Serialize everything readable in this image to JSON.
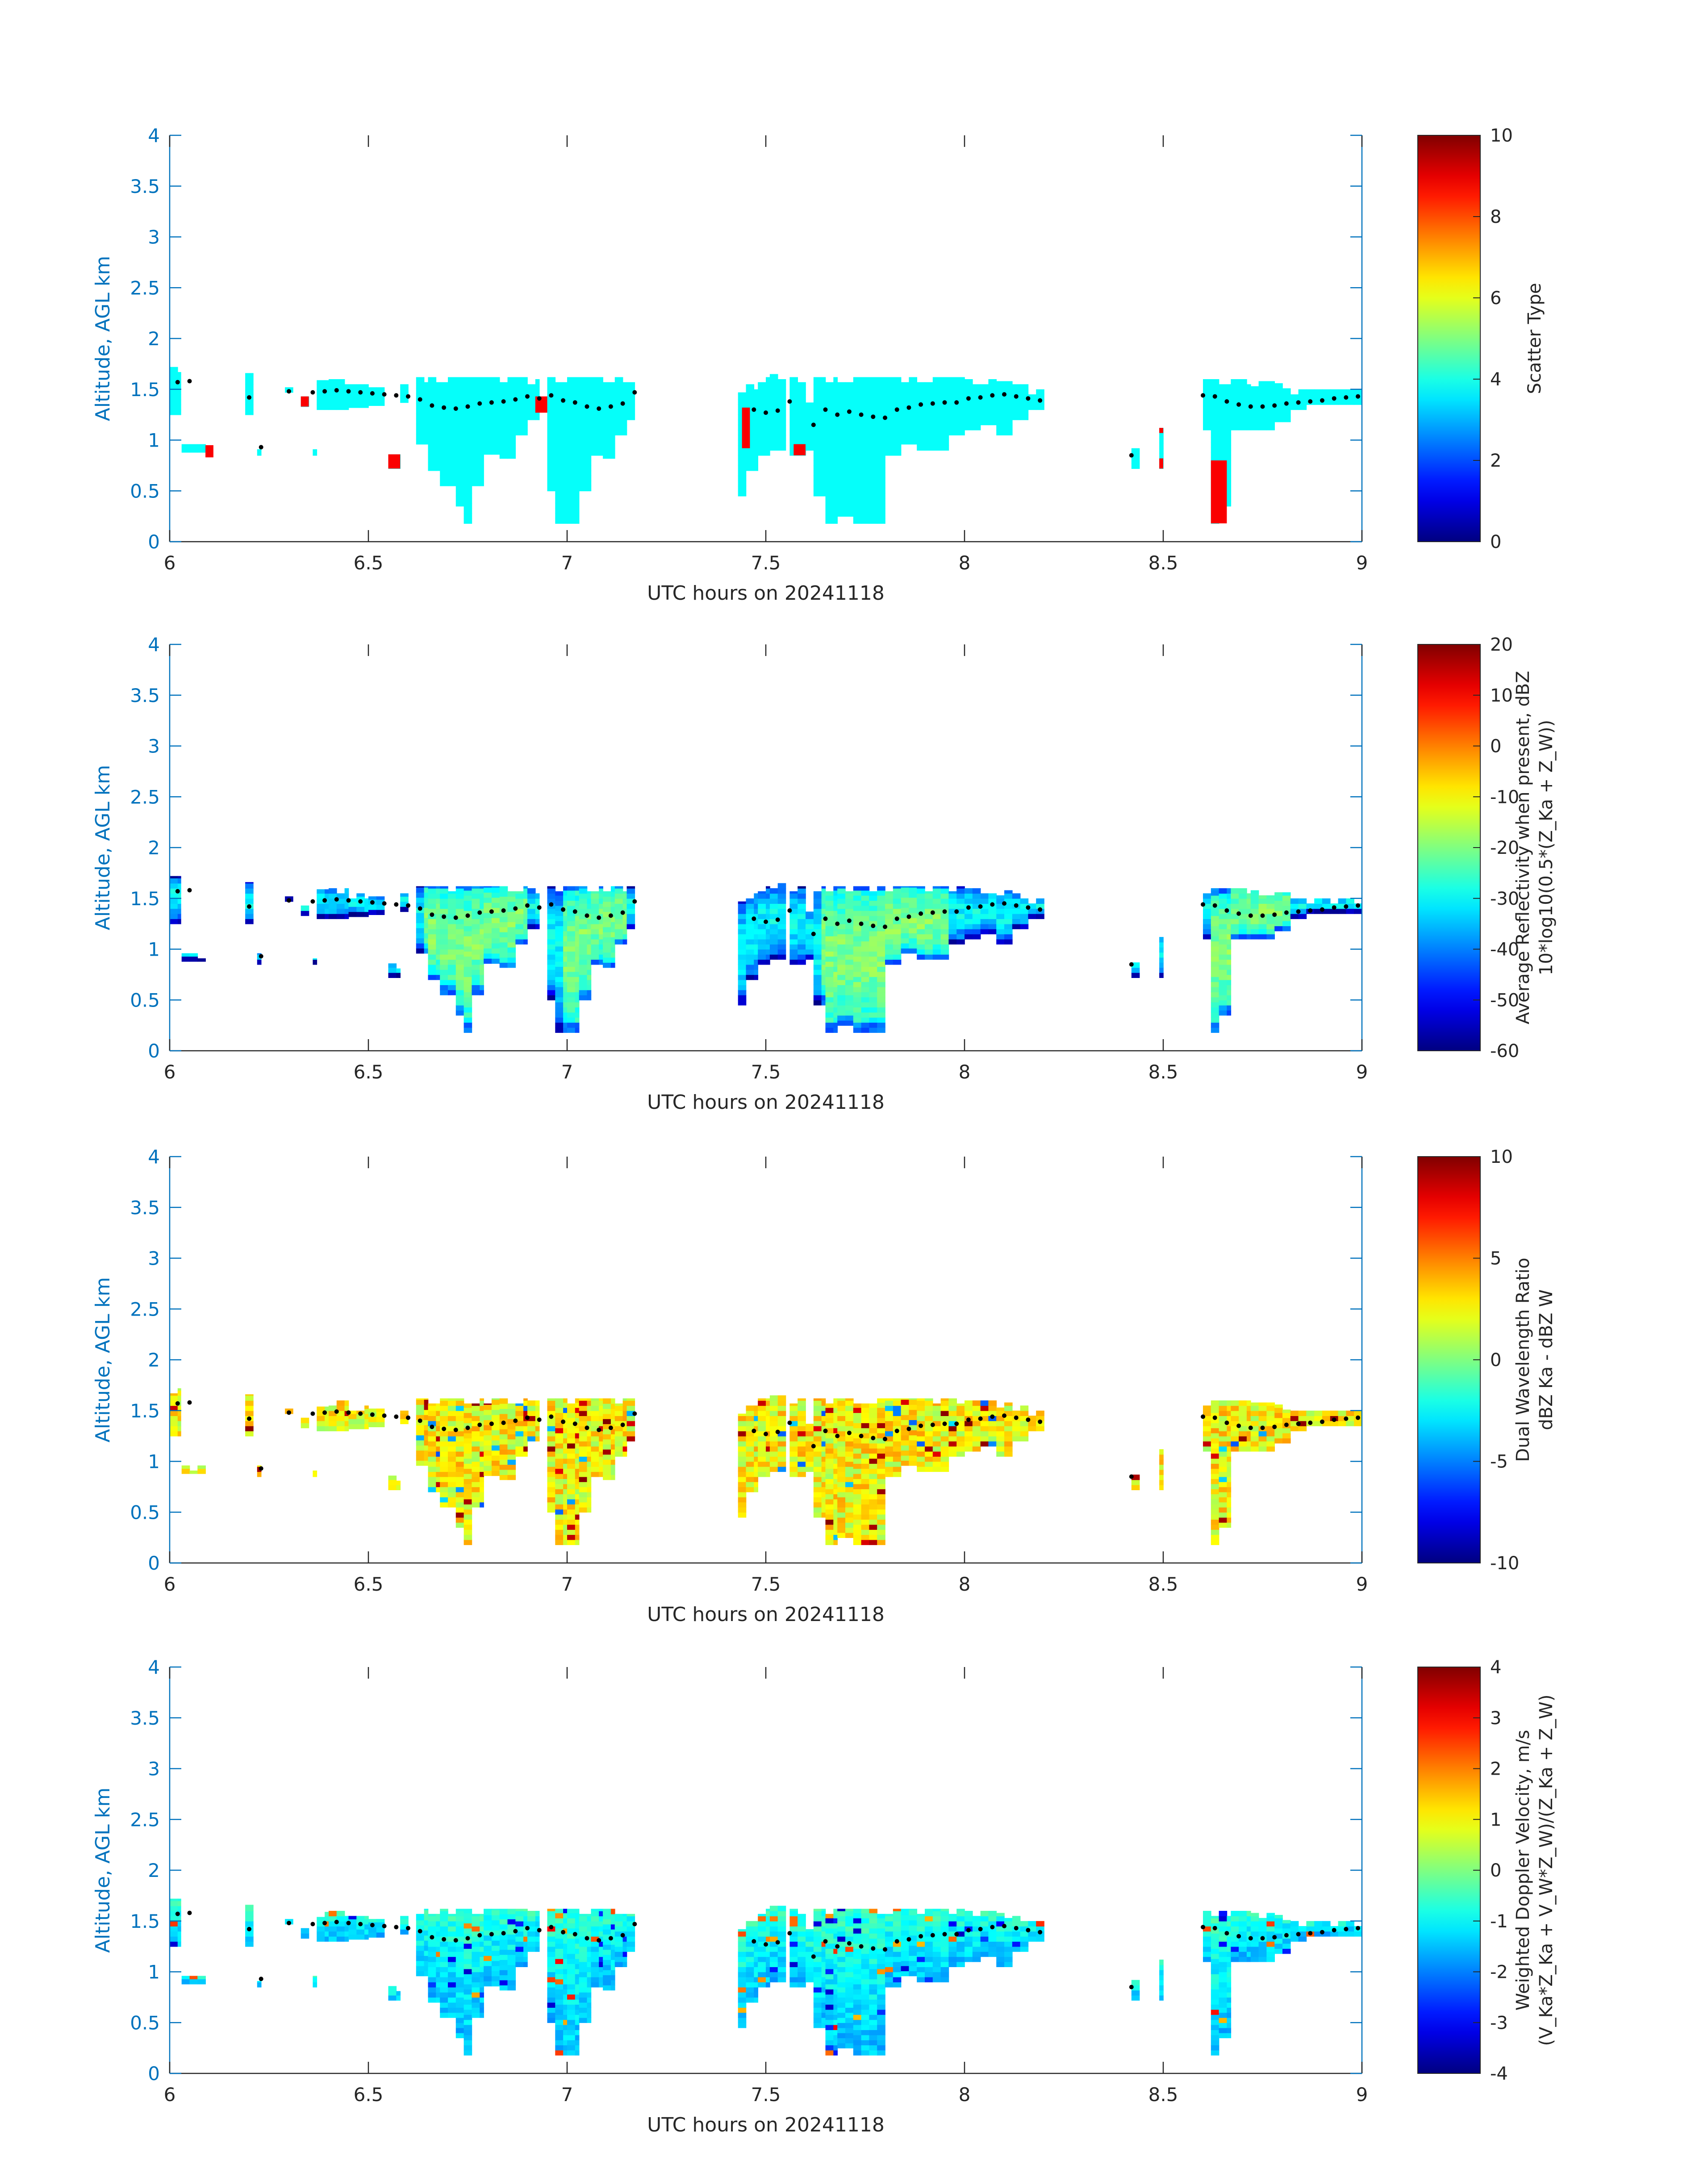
{
  "chart_data": [
    {
      "type": "heatmap",
      "xlabel": "UTC hours on 20241118",
      "ylabel": "Altitude, AGL km",
      "xlim": [
        6,
        9
      ],
      "ylim": [
        0,
        4
      ],
      "xticks": [
        "6",
        "6.5",
        "7",
        "7.5",
        "8",
        "8.5",
        "9"
      ],
      "yticks": [
        "0",
        "0.5",
        "1",
        "1.5",
        "2",
        "2.5",
        "3",
        "3.5",
        "4"
      ],
      "colorbar": {
        "label_lines": [
          "Scatter Type"
        ],
        "min": 0,
        "max": 10,
        "ticks": [
          "0",
          "2",
          "4",
          "6",
          "8",
          "10"
        ]
      },
      "field": "scatter_type",
      "dominant_value": 3.8,
      "secondary_value": 8.8
    },
    {
      "type": "heatmap",
      "xlabel": "UTC hours on 20241118",
      "ylabel": "Altitude, AGL km",
      "xlim": [
        6,
        9
      ],
      "ylim": [
        0,
        4
      ],
      "xticks": [
        "6",
        "6.5",
        "7",
        "7.5",
        "8",
        "8.5",
        "9"
      ],
      "yticks": [
        "0",
        "0.5",
        "1",
        "1.5",
        "2",
        "2.5",
        "3",
        "3.5",
        "4"
      ],
      "colorbar": {
        "label_lines": [
          "Average Reflectivity when present, dBZ",
          "10*log10(0.5*(Z_Ka + Z_W))"
        ],
        "min": -60,
        "max": 20,
        "ticks": [
          "-60",
          "-50",
          "-40",
          "-30",
          "-20",
          "-10",
          "0",
          "10",
          "20"
        ]
      },
      "field": "reflectivity",
      "typical_range": [
        -55,
        -18
      ]
    },
    {
      "type": "heatmap",
      "xlabel": "UTC hours on 20241118",
      "ylabel": "Altitude, AGL km",
      "xlim": [
        6,
        9
      ],
      "ylim": [
        0,
        4
      ],
      "xticks": [
        "6",
        "6.5",
        "7",
        "7.5",
        "8",
        "8.5",
        "9"
      ],
      "yticks": [
        "0",
        "0.5",
        "1",
        "1.5",
        "2",
        "2.5",
        "3",
        "3.5",
        "4"
      ],
      "colorbar": {
        "label_lines": [
          "Dual Wavelength Ratio",
          "dBZ Ka - dBZ W"
        ],
        "min": -10,
        "max": 10,
        "ticks": [
          "-10",
          "-5",
          "0",
          "5",
          "10"
        ]
      },
      "field": "dwr",
      "typical_range": [
        0,
        5
      ]
    },
    {
      "type": "heatmap",
      "xlabel": "UTC hours on 20241118",
      "ylabel": "Altitude, AGL km",
      "xlim": [
        6,
        9
      ],
      "ylim": [
        0,
        4
      ],
      "xticks": [
        "6",
        "6.5",
        "7",
        "7.5",
        "8",
        "8.5",
        "9"
      ],
      "yticks": [
        "0",
        "0.5",
        "1",
        "1.5",
        "2",
        "2.5",
        "3",
        "3.5",
        "4"
      ],
      "colorbar": {
        "label_lines": [
          "Weighted Doppler Velocity, m/s",
          "(V_Ka*Z_Ka + V_W*Z_W)/(Z_Ka + Z_W)"
        ],
        "min": -4,
        "max": 4,
        "ticks": [
          "-4",
          "-3",
          "-2",
          "-1",
          "0",
          "1",
          "2",
          "3",
          "4"
        ]
      },
      "field": "velocity",
      "typical_range": [
        -1.6,
        0
      ]
    }
  ],
  "cloud_base_dots": {
    "x": [
      6.02,
      6.05,
      6.08,
      6.11,
      6.14,
      6.17,
      6.2,
      6.23,
      6.27,
      6.3,
      6.33,
      6.36,
      6.39,
      6.42,
      6.45,
      6.48,
      6.51,
      6.54,
      6.57,
      6.6,
      6.63,
      6.66,
      6.69,
      6.72,
      6.75,
      6.78,
      6.81,
      6.84,
      6.87,
      6.9,
      6.93,
      6.96,
      6.99,
      7.02,
      7.05,
      7.08,
      7.11,
      7.14,
      7.17,
      7.44,
      7.47,
      7.5,
      7.53,
      7.56,
      7.59,
      7.62,
      7.65,
      7.68,
      7.71,
      7.74,
      7.77,
      7.8,
      7.83,
      7.86,
      7.89,
      7.92,
      7.95,
      7.98,
      8.01,
      8.04,
      8.07,
      8.1,
      8.13,
      8.16,
      8.19,
      8.42,
      8.45,
      8.48,
      8.51,
      8.54,
      8.57,
      8.6,
      8.63,
      8.66,
      8.69,
      8.72,
      8.75,
      8.78,
      8.81,
      8.84,
      8.87,
      8.9,
      8.93,
      8.96,
      8.99
    ],
    "y": [
      1.57,
      1.58,
      null,
      null,
      null,
      null,
      1.42,
      0.93,
      null,
      1.48,
      null,
      1.47,
      1.48,
      1.49,
      1.48,
      1.47,
      1.46,
      1.45,
      1.44,
      1.43,
      1.4,
      1.34,
      1.32,
      1.31,
      1.33,
      1.36,
      1.37,
      1.38,
      1.4,
      1.43,
      1.41,
      1.44,
      1.39,
      1.37,
      1.33,
      1.31,
      1.33,
      1.36,
      1.47,
      null,
      1.3,
      1.27,
      1.29,
      1.38,
      null,
      1.15,
      1.3,
      1.25,
      1.28,
      1.25,
      1.23,
      1.22,
      1.3,
      1.32,
      1.35,
      1.36,
      1.37,
      1.37,
      1.41,
      1.42,
      1.44,
      1.45,
      1.43,
      1.41,
      1.39,
      0.85,
      null,
      null,
      null,
      null,
      null,
      1.44,
      1.43,
      1.38,
      1.35,
      1.33,
      1.33,
      1.34,
      1.36,
      1.37,
      1.38,
      1.39,
      1.41,
      1.42,
      1.43
    ]
  },
  "columns": [
    [
      6.0,
      6.028,
      1.25,
      1.72
    ],
    [
      6.03,
      6.09,
      0.88,
      0.96
    ],
    [
      6.19,
      6.21,
      1.25,
      1.66
    ],
    [
      6.22,
      6.23,
      0.85,
      0.96
    ],
    [
      6.29,
      6.31,
      1.47,
      1.52
    ],
    [
      6.33,
      6.35,
      1.33,
      1.43
    ],
    [
      6.36,
      6.37,
      0.85,
      0.96
    ],
    [
      6.37,
      6.4,
      1.3,
      1.59
    ],
    [
      6.4,
      6.45,
      1.3,
      1.6
    ],
    [
      6.45,
      6.5,
      1.32,
      1.55
    ],
    [
      6.5,
      6.54,
      1.34,
      1.52
    ],
    [
      6.55,
      6.58,
      0.72,
      0.86
    ],
    [
      6.58,
      6.6,
      1.37,
      1.55
    ],
    [
      6.62,
      6.65,
      0.96,
      1.62
    ],
    [
      6.65,
      6.68,
      0.7,
      1.62
    ],
    [
      6.68,
      6.72,
      0.55,
      1.62
    ],
    [
      6.72,
      6.74,
      0.35,
      1.62
    ],
    [
      6.74,
      6.76,
      0.18,
      1.62
    ],
    [
      6.76,
      6.79,
      0.55,
      1.62
    ],
    [
      6.79,
      6.83,
      0.86,
      1.62
    ],
    [
      6.83,
      6.87,
      0.82,
      1.62
    ],
    [
      6.87,
      6.9,
      1.05,
      1.62
    ],
    [
      6.9,
      6.93,
      1.2,
      1.6
    ],
    [
      6.95,
      6.97,
      0.5,
      1.62
    ],
    [
      6.97,
      7.0,
      0.18,
      1.62
    ],
    [
      7.0,
      7.03,
      0.18,
      1.62
    ],
    [
      7.03,
      7.06,
      0.5,
      1.62
    ],
    [
      7.06,
      7.09,
      0.85,
      1.62
    ],
    [
      7.09,
      7.12,
      0.82,
      1.62
    ],
    [
      7.12,
      7.15,
      1.05,
      1.62
    ],
    [
      7.15,
      7.17,
      1.2,
      1.62
    ],
    [
      7.43,
      7.45,
      0.45,
      1.47
    ],
    [
      7.45,
      7.48,
      0.7,
      1.55
    ],
    [
      7.48,
      7.51,
      0.85,
      1.62
    ],
    [
      7.51,
      7.55,
      0.9,
      1.65
    ],
    [
      7.56,
      7.6,
      0.85,
      1.62
    ],
    [
      7.6,
      7.62,
      0.9,
      1.42
    ],
    [
      7.62,
      7.65,
      0.45,
      1.62
    ],
    [
      7.65,
      7.68,
      0.18,
      1.62
    ],
    [
      7.68,
      7.72,
      0.25,
      1.62
    ],
    [
      7.72,
      7.76,
      0.18,
      1.62
    ],
    [
      7.76,
      7.8,
      0.18,
      1.62
    ],
    [
      7.8,
      7.84,
      0.85,
      1.62
    ],
    [
      7.84,
      7.88,
      0.96,
      1.62
    ],
    [
      7.88,
      7.92,
      0.9,
      1.62
    ],
    [
      7.92,
      7.96,
      0.9,
      1.62
    ],
    [
      7.96,
      8.0,
      1.05,
      1.62
    ],
    [
      8.0,
      8.04,
      1.1,
      1.6
    ],
    [
      8.04,
      8.08,
      1.15,
      1.6
    ],
    [
      8.08,
      8.12,
      1.05,
      1.58
    ],
    [
      8.12,
      8.16,
      1.2,
      1.55
    ],
    [
      8.16,
      8.2,
      1.3,
      1.5
    ],
    [
      8.42,
      8.44,
      0.72,
      0.92
    ],
    [
      8.49,
      8.5,
      0.72,
      1.12
    ],
    [
      8.6,
      8.62,
      1.1,
      1.6
    ],
    [
      8.62,
      8.64,
      0.18,
      1.6
    ],
    [
      8.64,
      8.67,
      0.35,
      1.6
    ],
    [
      8.67,
      8.72,
      1.1,
      1.6
    ],
    [
      8.72,
      8.78,
      1.1,
      1.58
    ],
    [
      8.78,
      8.82,
      1.18,
      1.56
    ],
    [
      8.82,
      8.86,
      1.3,
      1.5
    ],
    [
      8.86,
      9.0,
      1.35,
      1.5
    ]
  ],
  "red_patches": [
    [
      6.09,
      6.11,
      0.83,
      0.95
    ],
    [
      6.33,
      6.35,
      1.33,
      1.43
    ],
    [
      6.55,
      6.58,
      0.72,
      0.86
    ],
    [
      6.92,
      6.95,
      1.27,
      1.43
    ],
    [
      7.44,
      7.46,
      0.92,
      1.32
    ],
    [
      7.57,
      7.6,
      0.85,
      0.96
    ],
    [
      8.49,
      8.5,
      0.72,
      0.82
    ],
    [
      8.49,
      8.5,
      1.07,
      1.12
    ],
    [
      8.62,
      8.66,
      0.18,
      0.8
    ]
  ]
}
